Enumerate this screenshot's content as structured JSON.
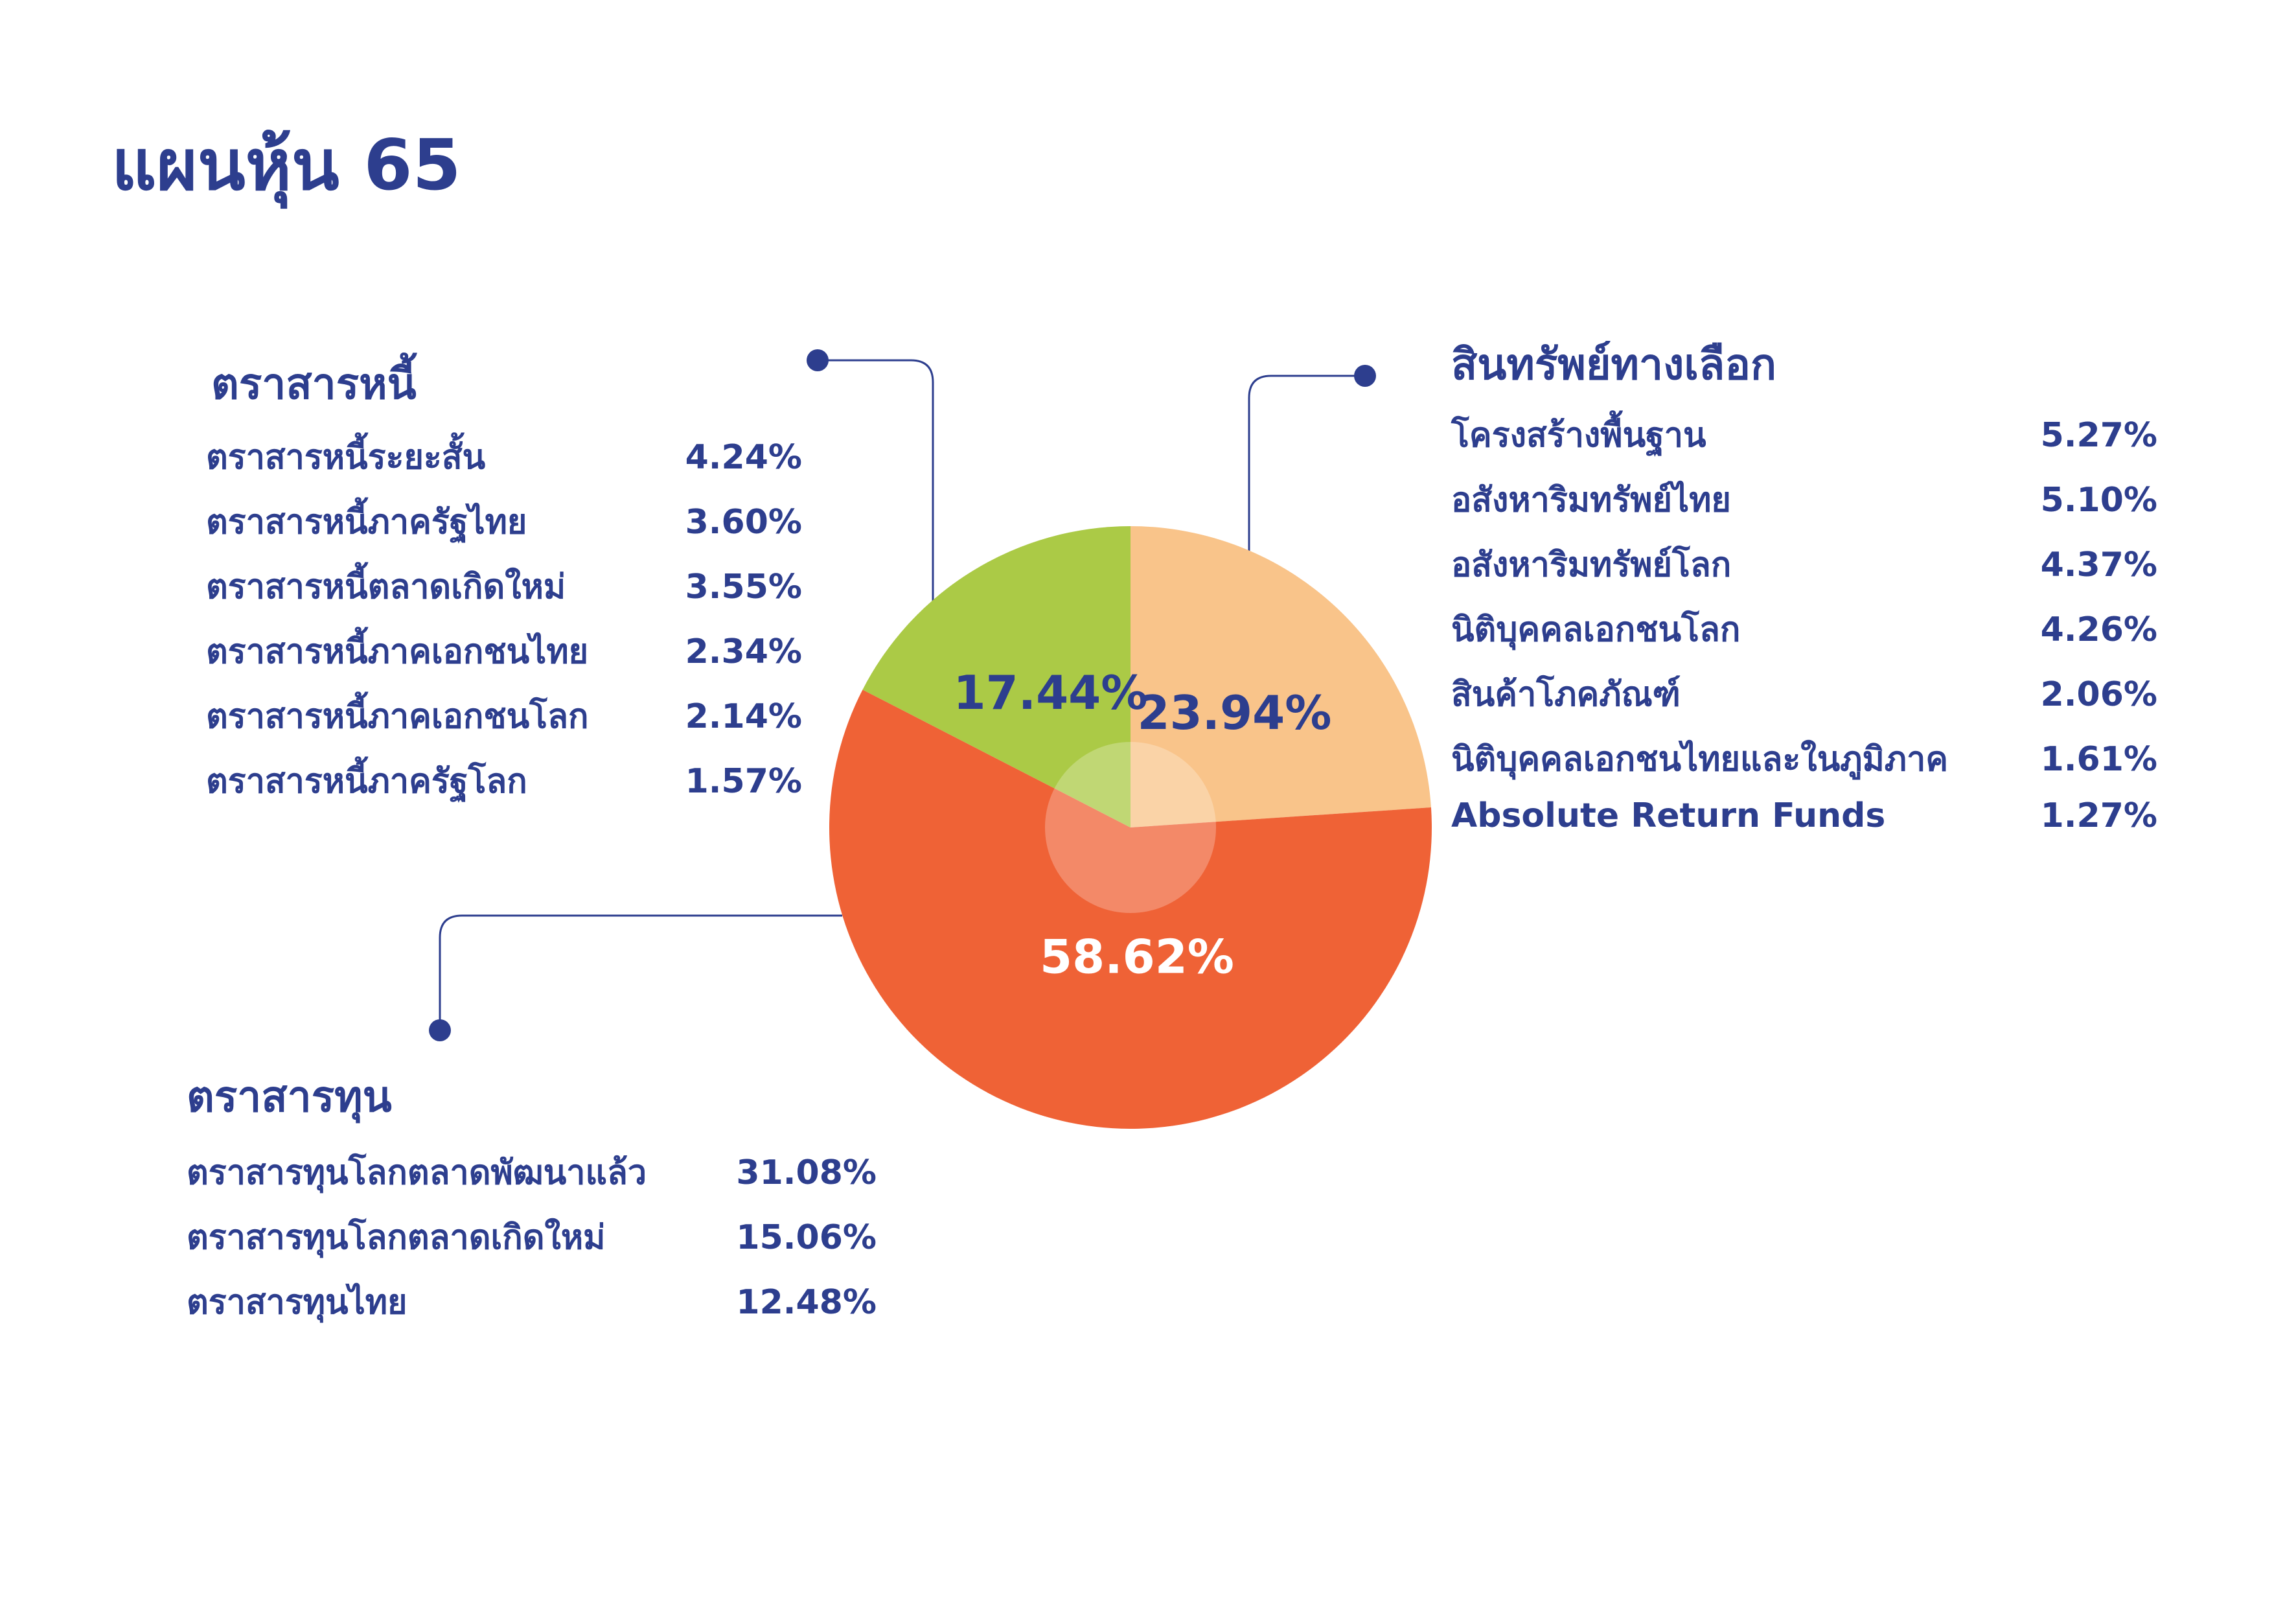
{
  "title": "แผนหุ้น 65",
  "colors": {
    "text": "#2d3e8e",
    "debt": "#abca46",
    "alternative": "#f9c48a",
    "equity": "#ef6236",
    "connector": "#2d3e8e"
  },
  "chart_data": {
    "type": "pie",
    "slices": [
      {
        "key": "alternative",
        "value": 23.94,
        "label": "23.94%"
      },
      {
        "key": "equity",
        "value": 58.62,
        "label": "58.62%"
      },
      {
        "key": "debt",
        "value": 17.44,
        "label": "17.44%"
      }
    ],
    "center_highlight": true
  },
  "groups": {
    "debt": {
      "title": "ตราสารหนี้",
      "items": [
        {
          "label": "ตราสารหนี้ระยะสั้น",
          "value": "4.24%"
        },
        {
          "label": "ตราสารหนี้ภาครัฐไทย",
          "value": "3.60%"
        },
        {
          "label": "ตราสารหนี้ตลาดเกิดใหม่",
          "value": "3.55%"
        },
        {
          "label": "ตราสารหนี้ภาคเอกชนไทย",
          "value": "2.34%"
        },
        {
          "label": "ตราสารหนี้ภาคเอกชนโลก",
          "value": "2.14%"
        },
        {
          "label": "ตราสารหนี้ภาครัฐโลก",
          "value": "1.57%"
        }
      ]
    },
    "alternative": {
      "title": "สินทรัพย์ทางเลือก",
      "items": [
        {
          "label": "โครงสร้างพื้นฐาน",
          "value": "5.27%"
        },
        {
          "label": "อสังหาริมทรัพย์ไทย",
          "value": "5.10%"
        },
        {
          "label": "อสังหาริมทรัพย์โลก",
          "value": "4.37%"
        },
        {
          "label": "นิติบุคคลเอกชนโลก",
          "value": "4.26%"
        },
        {
          "label": "สินค้าโภคภัณฑ์",
          "value": "2.06%"
        },
        {
          "label": "นิติบุคคลเอกชนไทยและในภูมิภาค",
          "value": "1.61%"
        },
        {
          "label": "Absolute Return Funds",
          "value": "1.27%"
        }
      ]
    },
    "equity": {
      "title": "ตราสารทุน",
      "items": [
        {
          "label": "ตราสารทุนโลกตลาดพัฒนาแล้ว",
          "value": "31.08%"
        },
        {
          "label": "ตราสารทุนโลกตลาดเกิดใหม่",
          "value": "15.06%"
        },
        {
          "label": "ตราสารทุนไทย",
          "value": "12.48%"
        }
      ]
    }
  }
}
